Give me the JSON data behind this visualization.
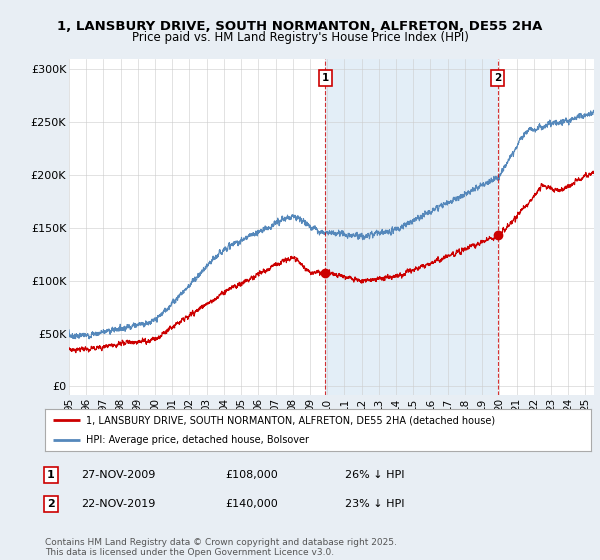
{
  "title_line1": "1, LANSBURY DRIVE, SOUTH NORMANTON, ALFRETON, DE55 2HA",
  "title_line2": "Price paid vs. HM Land Registry's House Price Index (HPI)",
  "background_color": "#e8eef4",
  "plot_bg_color": "#ffffff",
  "yticks": [
    0,
    50000,
    100000,
    150000,
    200000,
    250000,
    300000
  ],
  "ytick_labels": [
    "£0",
    "£50K",
    "£100K",
    "£150K",
    "£200K",
    "£250K",
    "£300K"
  ],
  "x_start_year": 1995,
  "x_end_year": 2025,
  "sale1_date": "27-NOV-2009",
  "sale1_price": 108000,
  "sale1_hpi_diff": "26% ↓ HPI",
  "sale1_x": 2009.9,
  "sale2_date": "22-NOV-2019",
  "sale2_price": 140000,
  "sale2_hpi_diff": "23% ↓ HPI",
  "sale2_x": 2019.9,
  "legend_label_red": "1, LANSBURY DRIVE, SOUTH NORMANTON, ALFRETON, DE55 2HA (detached house)",
  "legend_label_blue": "HPI: Average price, detached house, Bolsover",
  "footnote": "Contains HM Land Registry data © Crown copyright and database right 2025.\nThis data is licensed under the Open Government Licence v3.0.",
  "red_color": "#cc0000",
  "blue_color": "#5588bb",
  "shade_color": "#d8e8f5"
}
